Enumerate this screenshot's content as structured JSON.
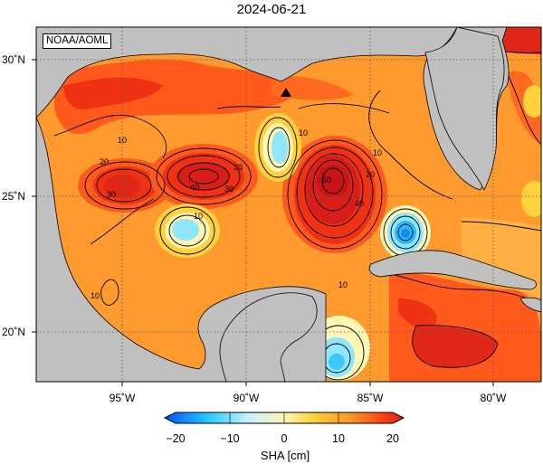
{
  "title": "2024-06-21",
  "credit": "NOAA/AOML",
  "map": {
    "lon_range": [
      -99,
      -78
    ],
    "lat_range": [
      18,
      31
    ],
    "x_ticks": [
      {
        "lon": -95,
        "label": "95˚W"
      },
      {
        "lon": -90,
        "label": "90˚W"
      },
      {
        "lon": -85,
        "label": "85˚W"
      },
      {
        "lon": -80,
        "label": "80˚W"
      }
    ],
    "y_ticks": [
      {
        "lat": 30,
        "label": "30˚N"
      },
      {
        "lat": 25,
        "label": "25˚N"
      },
      {
        "lat": 20,
        "label": "20˚N"
      }
    ],
    "gridlines": "dotted",
    "land_color": "#c0c0c0",
    "contour_labels": [
      "10",
      "20",
      "30",
      "30",
      "40",
      "30",
      "50",
      "40",
      "20",
      "10",
      "10",
      "10",
      "10",
      "10"
    ]
  },
  "colorbar": {
    "ticks": [
      "−20",
      "−10",
      "0",
      "10",
      "20"
    ],
    "label": "SHA [cm]",
    "range": [
      -20,
      20
    ],
    "colors": [
      "#0050ff",
      "#28c8ff",
      "#c8f0ff",
      "#fff5b4",
      "#ffd23c",
      "#ff9628",
      "#ff3c14",
      "#d21e1e"
    ]
  }
}
